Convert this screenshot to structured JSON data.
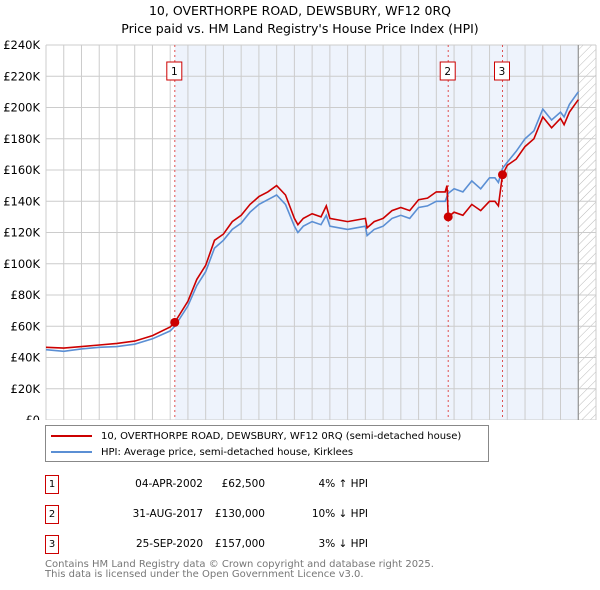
{
  "title": [
    "10, OVERTHORPE ROAD, DEWSBURY, WF12 0RQ",
    "Price paid vs. HM Land Registry's House Price Index (HPI)"
  ],
  "colors": {
    "property": "#cc0000",
    "hpi": "#5b8fd4",
    "shade": "#eef3fc"
  },
  "chart_data": {
    "type": "line",
    "title": "10, OVERTHORPE ROAD, DEWSBURY, WF12 0RQ — Price paid vs. HM Land Registry's House Price Index (HPI)",
    "xlim": [
      1995,
      2026
    ],
    "ylim": [
      0,
      240000
    ],
    "xticks": [
      "1995",
      "1996",
      "1997",
      "1998",
      "1999",
      "2000",
      "2001",
      "2002",
      "2003",
      "2004",
      "2005",
      "2006",
      "2007",
      "2008",
      "2009",
      "2010",
      "2011",
      "2012",
      "2013",
      "2014",
      "2015",
      "2016",
      "2017",
      "2018",
      "2019",
      "2020",
      "2021",
      "2022",
      "2023",
      "2024",
      "2025",
      "2026"
    ],
    "yticks": [
      "£0",
      "£20K",
      "£40K",
      "£60K",
      "£80K",
      "£100K",
      "£120K",
      "£140K",
      "£160K",
      "£180K",
      "£200K",
      "£220K",
      "£240K"
    ],
    "grid": true,
    "shaded_range": [
      2002.26,
      2025.0
    ],
    "forecast_hatch_from": 2025.0,
    "series": [
      {
        "name": "10, OVERTHORPE ROAD, DEWSBURY, WF12 0RQ (semi-detached house)",
        "color": "#cc0000",
        "x": [
          1995,
          1996,
          1997,
          1998,
          1999,
          2000,
          2001,
          2002,
          2002.26,
          2003,
          2003.5,
          2004,
          2004.5,
          2005,
          2005.5,
          2006,
          2006.5,
          2007,
          2007.5,
          2008,
          2008.5,
          2009,
          2009.2,
          2009.5,
          2010,
          2010.5,
          2010.8,
          2011,
          2011.5,
          2012,
          2012.5,
          2013,
          2013.1,
          2013.5,
          2014,
          2014.5,
          2015,
          2015.5,
          2016,
          2016.5,
          2017,
          2017.5,
          2017.6,
          2017.67,
          2018,
          2018.5,
          2019,
          2019.5,
          2020,
          2020.3,
          2020.5,
          2020.73,
          2021,
          2021.5,
          2022,
          2022.5,
          2023,
          2023.5,
          2024,
          2024.2,
          2024.5,
          2025
        ],
        "y": [
          46500,
          46000,
          47000,
          48000,
          49000,
          50500,
          54000,
          59500,
          62500,
          76000,
          90000,
          99000,
          115000,
          119000,
          127000,
          131000,
          138000,
          143000,
          146000,
          150000,
          144000,
          129000,
          125000,
          129000,
          132000,
          130000,
          137000,
          129000,
          128000,
          127000,
          128000,
          129000,
          123000,
          127000,
          129000,
          134000,
          136000,
          134000,
          141000,
          142000,
          146000,
          146000,
          150000,
          130000,
          133000,
          131000,
          138000,
          134000,
          140000,
          140000,
          137000,
          157000,
          163000,
          167000,
          175000,
          180000,
          194000,
          187000,
          193000,
          189000,
          197000,
          205000
        ]
      },
      {
        "name": "HPI: Average price, semi-detached house, Kirklees",
        "color": "#5b8fd4",
        "x": [
          1995,
          1996,
          1997,
          1998,
          1999,
          2000,
          2001,
          2002,
          2002.26,
          2003,
          2003.5,
          2004,
          2004.5,
          2005,
          2005.5,
          2006,
          2006.5,
          2007,
          2007.5,
          2008,
          2008.5,
          2009,
          2009.2,
          2009.5,
          2010,
          2010.5,
          2010.8,
          2011,
          2011.5,
          2012,
          2012.5,
          2013,
          2013.1,
          2013.5,
          2014,
          2014.5,
          2015,
          2015.5,
          2016,
          2016.5,
          2017,
          2017.5,
          2017.67,
          2018,
          2018.5,
          2019,
          2019.5,
          2020,
          2020.3,
          2020.5,
          2020.73,
          2021,
          2021.5,
          2022,
          2022.5,
          2023,
          2023.5,
          2024,
          2024.2,
          2024.5,
          2025
        ],
        "y": [
          45000,
          44000,
          45500,
          46500,
          47000,
          48500,
          52000,
          57000,
          60000,
          73000,
          86000,
          95000,
          110000,
          115000,
          122000,
          126000,
          133000,
          138000,
          141000,
          144000,
          138000,
          124000,
          120000,
          124000,
          127000,
          125000,
          131000,
          124000,
          123000,
          122000,
          123000,
          124000,
          118000,
          122000,
          124000,
          129000,
          131000,
          129000,
          136000,
          137000,
          140000,
          140000,
          145000,
          148000,
          146000,
          153000,
          148000,
          155000,
          155000,
          152000,
          161000,
          165000,
          172000,
          180000,
          185000,
          199000,
          192000,
          197000,
          194000,
          202000,
          210000
        ]
      }
    ],
    "sales": [
      {
        "label": "1",
        "x": 2002.26,
        "y": 62500
      },
      {
        "label": "2",
        "x": 2017.67,
        "y": 130000
      },
      {
        "label": "3",
        "x": 2020.73,
        "y": 157000
      }
    ],
    "legend_position": "below"
  },
  "legend": [
    "10, OVERTHORPE ROAD, DEWSBURY, WF12 0RQ (semi-detached house)",
    "HPI: Average price, semi-detached house, Kirklees"
  ],
  "transactions": [
    {
      "num": "1",
      "date": "04-APR-2002",
      "price": "£62,500",
      "hpi": "4% ↑ HPI"
    },
    {
      "num": "2",
      "date": "31-AUG-2017",
      "price": "£130,000",
      "hpi": "10% ↓ HPI"
    },
    {
      "num": "3",
      "date": "25-SEP-2020",
      "price": "£157,000",
      "hpi": "3% ↓ HPI"
    }
  ],
  "footer": [
    "Contains HM Land Registry data © Crown copyright and database right 2025.",
    "This data is licensed under the Open Government Licence v3.0."
  ]
}
